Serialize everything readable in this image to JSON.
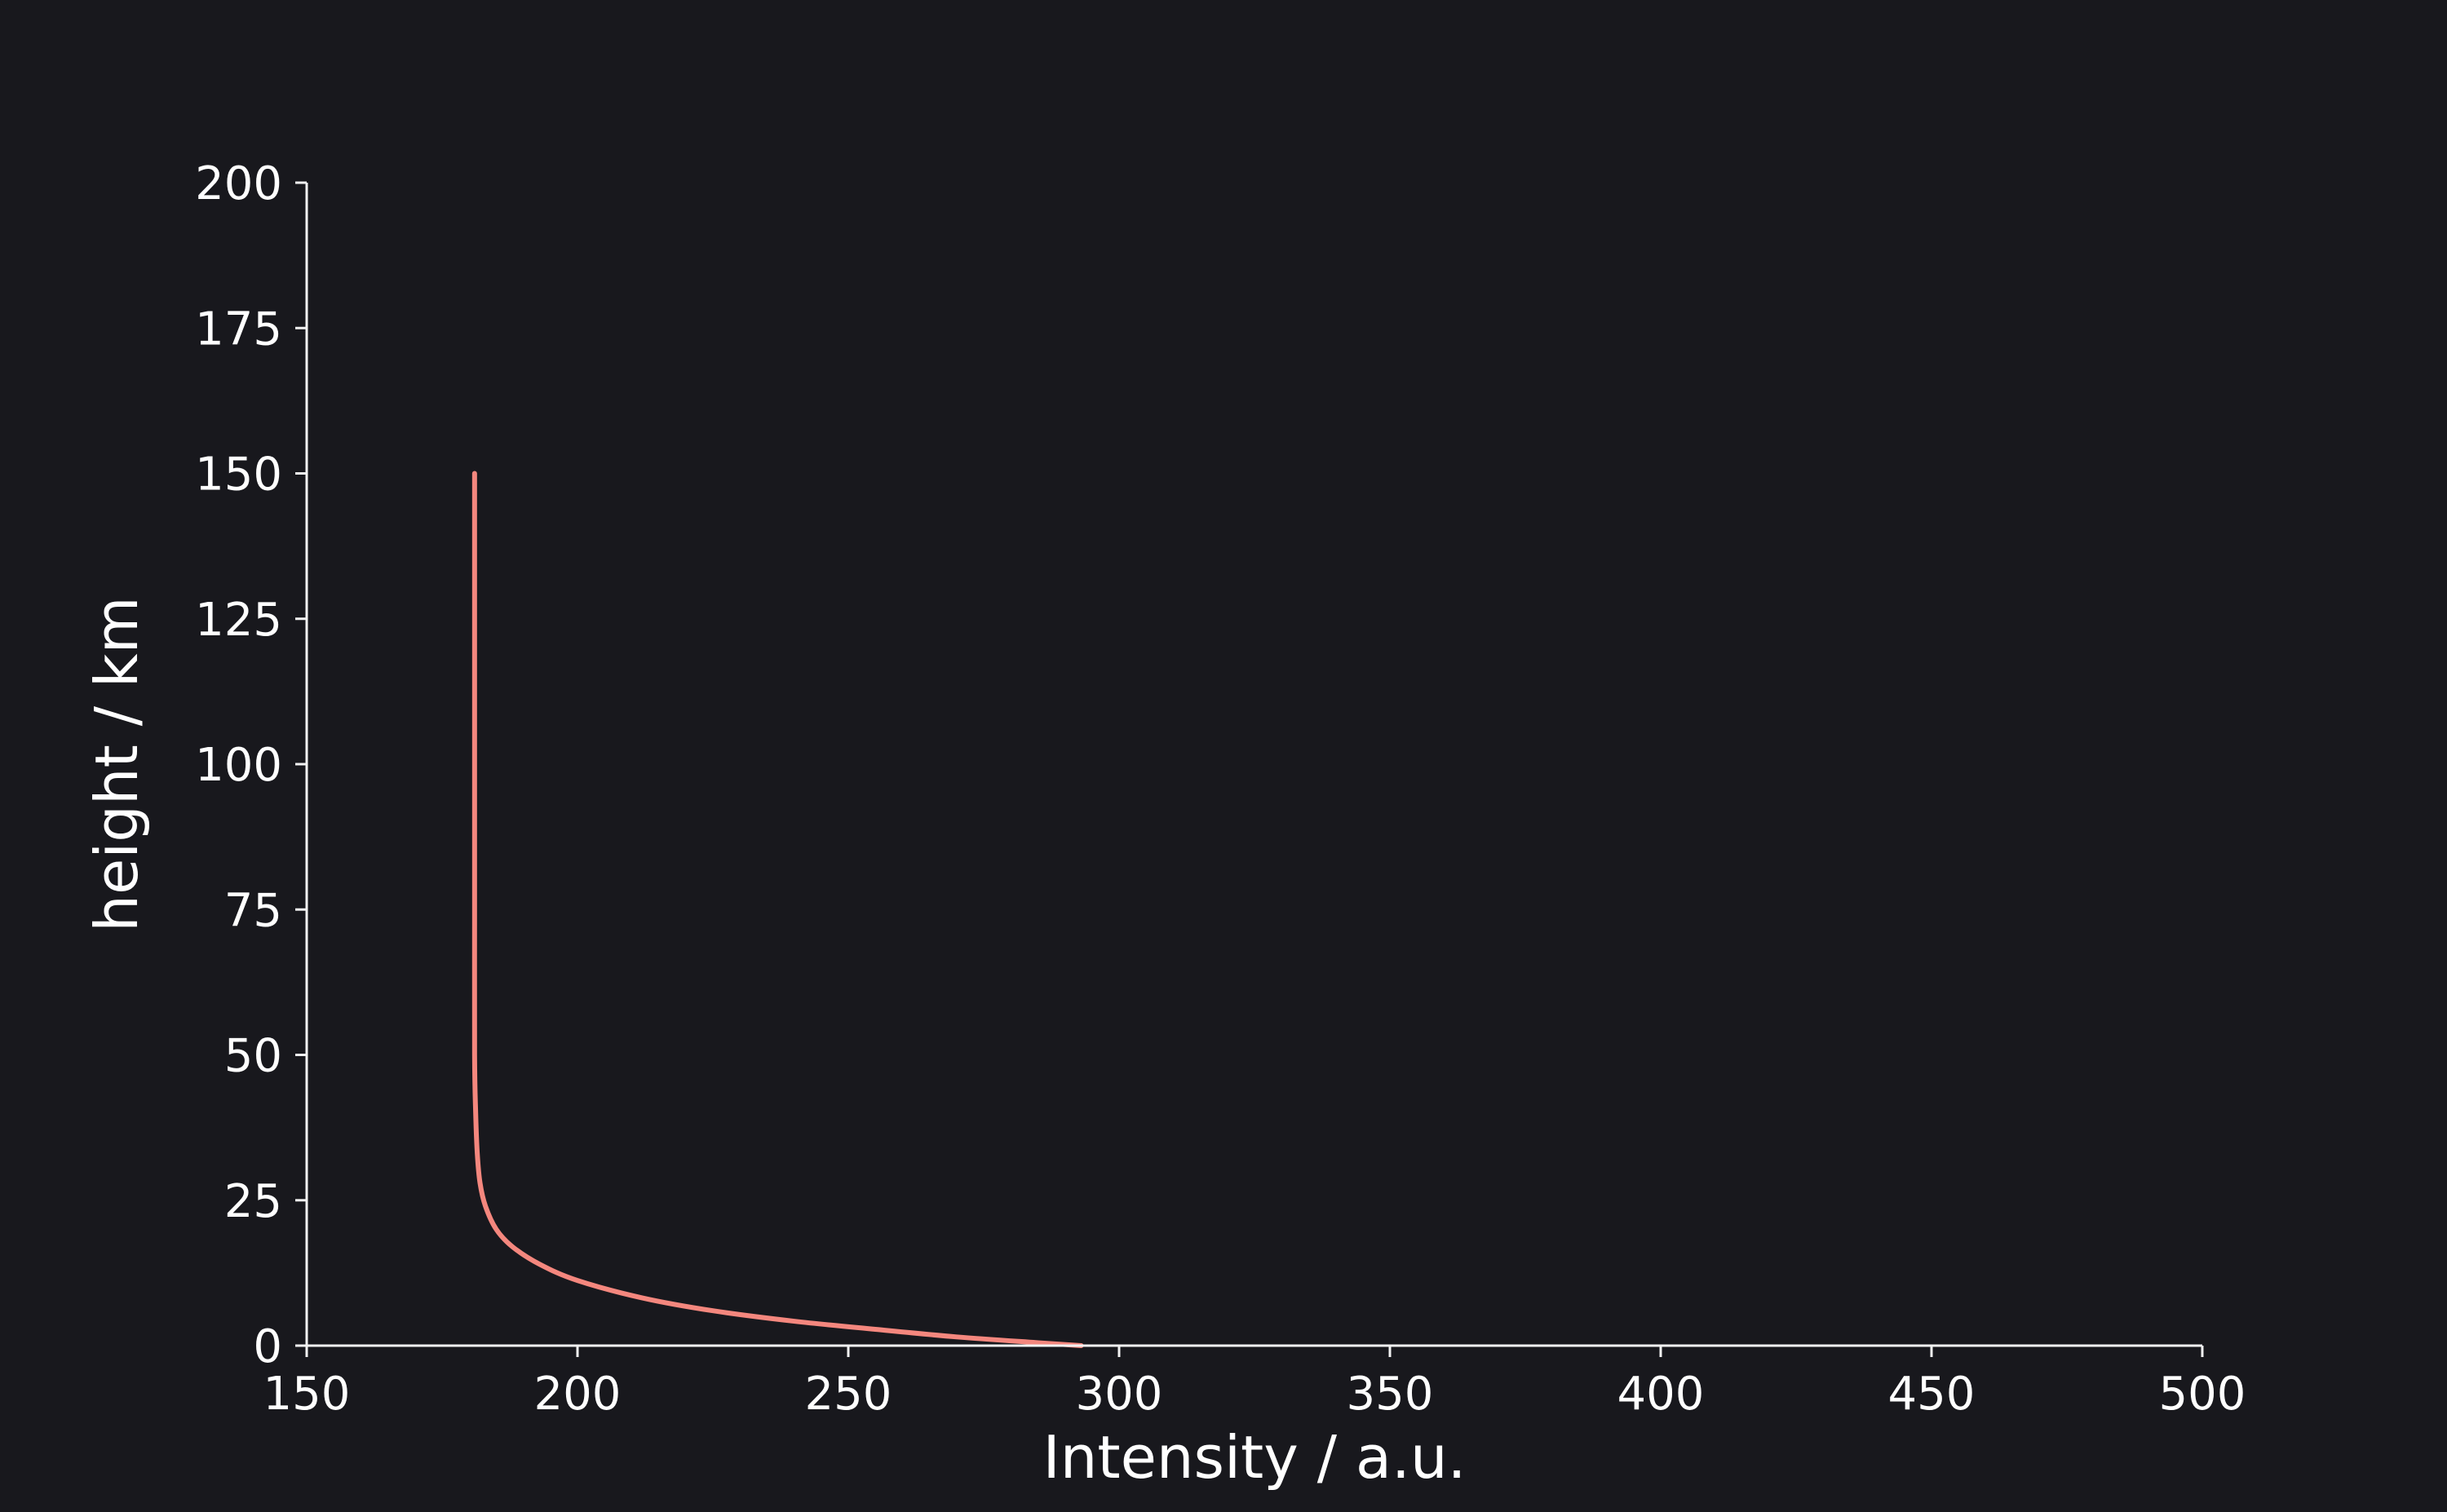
{
  "theme": {
    "background": "#18181d",
    "axis_color": "#f2f2f2",
    "text_color": "#ffffff"
  },
  "chart_data": {
    "type": "line",
    "title": "",
    "xlabel": "Intensity / a.u.",
    "ylabel": "height / km",
    "xlim": [
      150,
      500
    ],
    "ylim": [
      0,
      200
    ],
    "x_ticks": [
      150,
      200,
      250,
      300,
      350,
      400,
      450,
      500
    ],
    "y_ticks": [
      0,
      25,
      50,
      75,
      100,
      125,
      150,
      175,
      200
    ],
    "x_tick_labels": [
      "150",
      "200",
      "250",
      "300",
      "350",
      "400",
      "450",
      "500"
    ],
    "y_tick_labels": [
      "0",
      "25",
      "50",
      "75",
      "100",
      "125",
      "150",
      "175",
      "200"
    ],
    "grid": false,
    "legend": "none",
    "series": [
      {
        "color": "#f4877e",
        "points": [
          {
            "x": 293.0,
            "y": 0
          },
          {
            "x": 285.0,
            "y": 0.5
          },
          {
            "x": 270.0,
            "y": 1.5
          },
          {
            "x": 255.0,
            "y": 2.8
          },
          {
            "x": 240.0,
            "y": 4.2
          },
          {
            "x": 225.0,
            "y": 6.0
          },
          {
            "x": 212.0,
            "y": 8.2
          },
          {
            "x": 200.0,
            "y": 11.2
          },
          {
            "x": 193.0,
            "y": 14.0
          },
          {
            "x": 188.0,
            "y": 17.0
          },
          {
            "x": 185.0,
            "y": 20.0
          },
          {
            "x": 183.0,
            "y": 24.0
          },
          {
            "x": 182.0,
            "y": 28.0
          },
          {
            "x": 181.5,
            "y": 33.0
          },
          {
            "x": 181.2,
            "y": 40.0
          },
          {
            "x": 181.0,
            "y": 50.0
          },
          {
            "x": 181.0,
            "y": 75.0
          },
          {
            "x": 181.0,
            "y": 100.0
          },
          {
            "x": 181.0,
            "y": 125.0
          },
          {
            "x": 181.0,
            "y": 150.0
          }
        ]
      }
    ]
  }
}
